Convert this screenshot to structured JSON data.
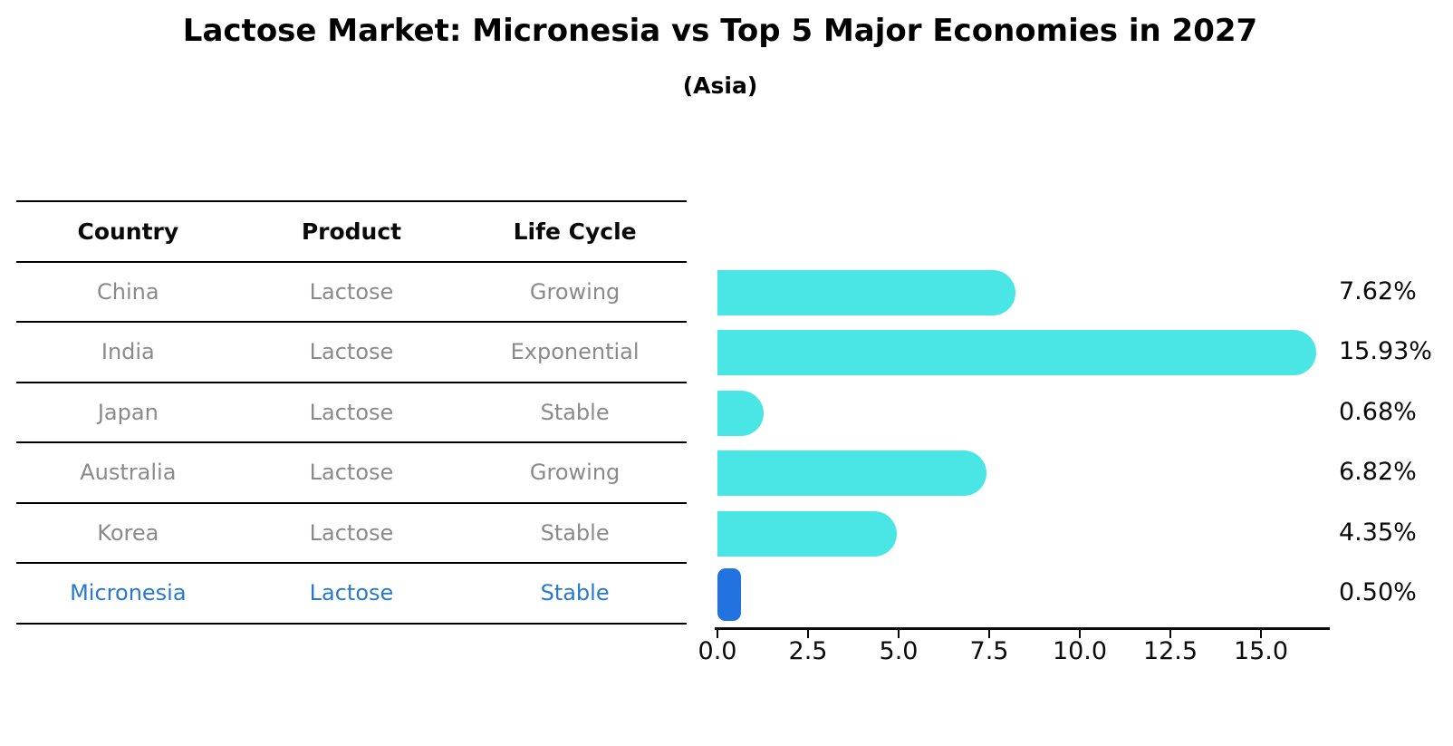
{
  "title": "Lactose Market: Micronesia vs Top 5 Major Economies in 2027",
  "subtitle": "(Asia)",
  "table": {
    "headers": [
      "Country",
      "Product",
      "Life Cycle"
    ],
    "rows": [
      {
        "country": "China",
        "product": "Lactose",
        "life_cycle": "Growing",
        "highlight": false
      },
      {
        "country": "India",
        "product": "Lactose",
        "life_cycle": "Exponential",
        "highlight": false
      },
      {
        "country": "Japan",
        "product": "Lactose",
        "life_cycle": "Stable",
        "highlight": false
      },
      {
        "country": "Australia",
        "product": "Lactose",
        "life_cycle": "Growing",
        "highlight": false
      },
      {
        "country": "Korea",
        "product": "Lactose",
        "life_cycle": "Stable",
        "highlight": false
      },
      {
        "country": "Micronesia",
        "product": "Lactose",
        "life_cycle": "Stable",
        "highlight": true
      }
    ]
  },
  "chart_data": {
    "type": "bar",
    "orientation": "horizontal",
    "title": "Lactose Market: Micronesia vs Top 5 Major Economies in 2027",
    "subtitle": "(Asia)",
    "categories": [
      "China",
      "India",
      "Japan",
      "Australia",
      "Korea",
      "Micronesia"
    ],
    "values": [
      7.62,
      15.93,
      0.68,
      6.82,
      4.35,
      0.5
    ],
    "value_labels": [
      "7.62%",
      "15.93%",
      "0.68%",
      "6.82%",
      "4.35%",
      "0.50%"
    ],
    "highlight_index": 5,
    "x_tick_values": [
      0,
      2.5,
      5,
      7.5,
      10,
      12.5,
      15
    ],
    "x_tick_labels": [
      "0.0",
      "2.5",
      "5.0",
      "7.5",
      "10.0",
      "12.5",
      "15.0"
    ],
    "xlim": [
      0,
      16.9
    ],
    "grid": false,
    "legend": false,
    "bar_color": "#4AE5E5",
    "highlight_bar_color": "#2273E0"
  },
  "colors": {
    "row_text": "#8a8a8a",
    "header_text": "#0a0a0a",
    "highlight_text": "#2878cc",
    "axis": "#0a0a0a"
  }
}
